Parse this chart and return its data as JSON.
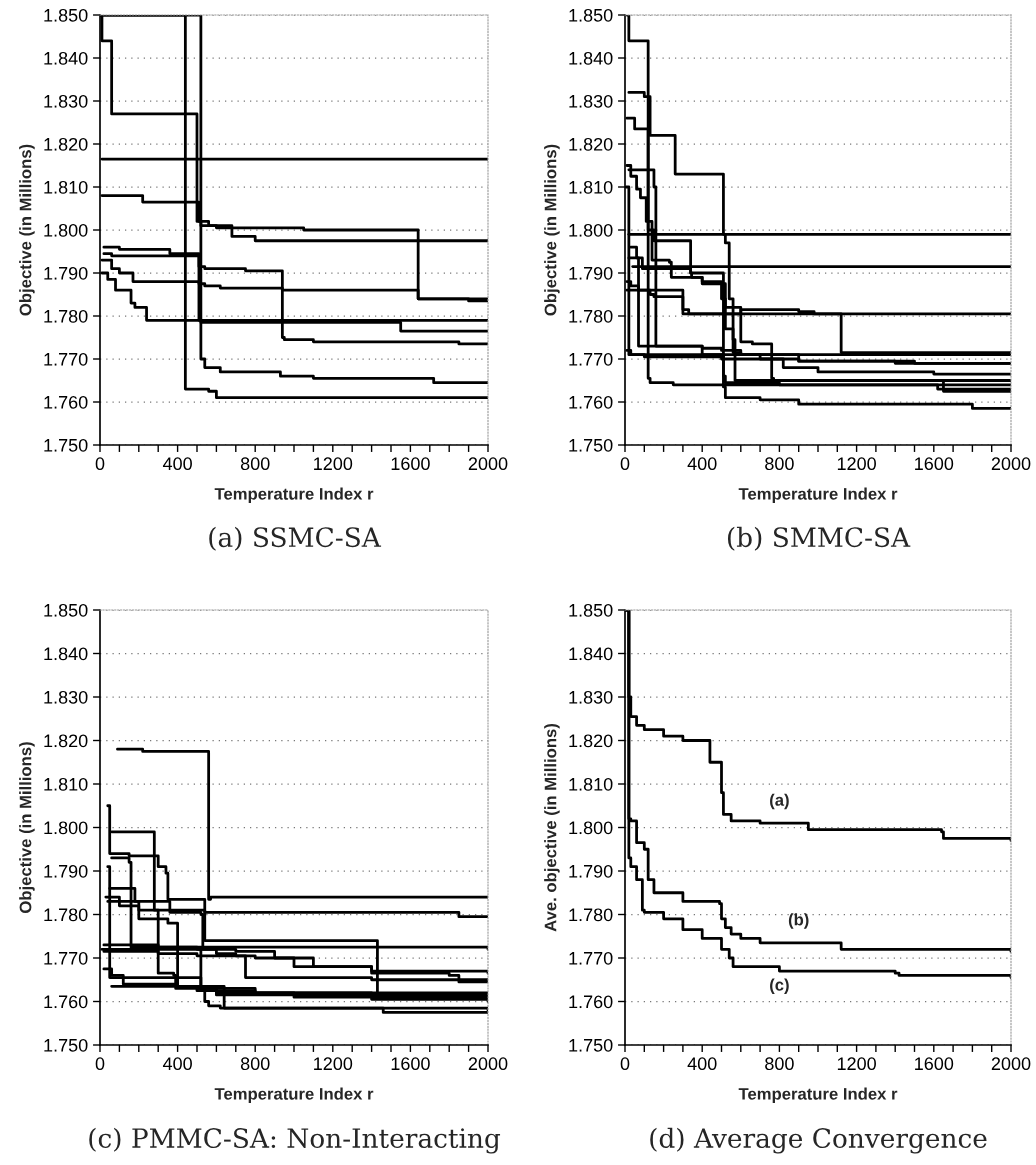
{
  "chart_data": [
    {
      "type": "step",
      "title": "(a) SSMC-SA",
      "xlabel": "Temperature Index r",
      "ylabel": "Objective (in Millions)",
      "xlim": [
        0,
        2000
      ],
      "ylim": [
        1.75,
        1.85
      ],
      "xticks": [
        0,
        {
          "value": 100,
          "label": null
        },
        {
          "value": 200,
          "label": null
        },
        {
          "value": 300,
          "label": null
        },
        400,
        {
          "value": 500,
          "label": null
        },
        {
          "value": 600,
          "label": null
        },
        {
          "value": 700,
          "label": null
        },
        800,
        {
          "value": 900,
          "label": null
        },
        {
          "value": 1000,
          "label": null
        },
        {
          "value": 1100,
          "label": null
        },
        1200,
        {
          "value": 1300,
          "label": null
        },
        {
          "value": 1400,
          "label": null
        },
        {
          "value": 1500,
          "label": null
        },
        1600,
        {
          "value": 1700,
          "label": null
        },
        {
          "value": 1800,
          "label": null
        },
        {
          "value": 1900,
          "label": null
        },
        2000
      ],
      "yticks": [
        {
          "value": 1.75,
          "label": "1.750"
        },
        {
          "value": 1.76,
          "label": "1.760"
        },
        {
          "value": 1.77,
          "label": "1.770"
        },
        {
          "value": 1.78,
          "label": "1.780"
        },
        {
          "value": 1.79,
          "label": "1.790"
        },
        {
          "value": 1.8,
          "label": "1.800"
        },
        {
          "value": 1.81,
          "label": "1.810"
        },
        {
          "value": 1.82,
          "label": "1.820"
        },
        {
          "value": 1.83,
          "label": "1.830"
        },
        {
          "value": 1.84,
          "label": "1.840"
        },
        {
          "value": 1.85,
          "label": "1.850"
        }
      ],
      "grid": "y",
      "legend": false,
      "series": [
        {
          "color": "#000000",
          "x": [
            0,
            10,
            60,
            500,
            520,
            600,
            700,
            1050,
            1640,
            1900,
            2000
          ],
          "values": [
            1.85,
            1.844,
            1.827,
            1.802,
            1.801,
            1.8005,
            1.8005,
            1.8,
            1.784,
            1.7835,
            1.7835
          ]
        },
        {
          "color": "#000000",
          "x": [
            10,
            2000
          ],
          "values": [
            1.8165,
            1.8165
          ]
        },
        {
          "color": "#000000",
          "x": [
            10,
            220,
            510,
            560,
            680,
            800,
            2000
          ],
          "values": [
            1.808,
            1.8065,
            1.802,
            1.801,
            1.7985,
            1.7975,
            1.7975
          ]
        },
        {
          "color": "#000000",
          "x": [
            20,
            100,
            360,
            510,
            540,
            750,
            940,
            950,
            1100,
            1850,
            2000
          ],
          "values": [
            1.796,
            1.7955,
            1.7945,
            1.7915,
            1.791,
            1.7905,
            1.775,
            1.7745,
            1.774,
            1.7735,
            1.7735
          ]
        },
        {
          "color": "#000000",
          "x": [
            20,
            60,
            510,
            540,
            620,
            940,
            1640,
            2000
          ],
          "values": [
            1.7945,
            1.794,
            1.7875,
            1.787,
            1.7865,
            1.786,
            1.784,
            1.784
          ]
        },
        {
          "color": "#000000",
          "x": [
            10,
            60,
            100,
            170,
            510,
            520,
            1550,
            2000
          ],
          "values": [
            1.793,
            1.791,
            1.79,
            1.788,
            1.779,
            1.7785,
            1.7765,
            1.7765
          ]
        },
        {
          "color": "#000000",
          "x": [
            10,
            40,
            80,
            160,
            180,
            240,
            2000
          ],
          "values": [
            1.79,
            1.7885,
            1.786,
            1.783,
            1.782,
            1.779,
            1.779
          ]
        },
        {
          "color": "#000000",
          "x": [
            0,
            510,
            520,
            540,
            620,
            930,
            1100,
            1720,
            2000
          ],
          "values": [
            1.85,
            1.85,
            1.77,
            1.768,
            1.767,
            1.766,
            1.7655,
            1.7645,
            1.7645
          ]
        },
        {
          "color": "#000000",
          "x": [
            0,
            440,
            560,
            600,
            2000
          ],
          "values": [
            1.85,
            1.763,
            1.7625,
            1.761,
            1.761
          ]
        }
      ]
    },
    {
      "type": "step",
      "title": "(b) SMMC-SA",
      "xlabel": "Temperature Index r",
      "ylabel": "Objective (in Millions)",
      "xlim": [
        0,
        2000
      ],
      "ylim": [
        1.75,
        1.85
      ],
      "xticks": [
        0,
        {
          "value": 100,
          "label": null
        },
        {
          "value": 200,
          "label": null
        },
        {
          "value": 300,
          "label": null
        },
        400,
        {
          "value": 500,
          "label": null
        },
        {
          "value": 600,
          "label": null
        },
        {
          "value": 700,
          "label": null
        },
        800,
        {
          "value": 900,
          "label": null
        },
        {
          "value": 1000,
          "label": null
        },
        {
          "value": 1100,
          "label": null
        },
        1200,
        {
          "value": 1300,
          "label": null
        },
        {
          "value": 1400,
          "label": null
        },
        {
          "value": 1500,
          "label": null
        },
        1600,
        {
          "value": 1700,
          "label": null
        },
        {
          "value": 1800,
          "label": null
        },
        {
          "value": 1900,
          "label": null
        },
        2000
      ],
      "yticks": [
        {
          "value": 1.75,
          "label": "1.750"
        },
        {
          "value": 1.76,
          "label": "1.760"
        },
        {
          "value": 1.77,
          "label": "1.770"
        },
        {
          "value": 1.78,
          "label": "1.780"
        },
        {
          "value": 1.79,
          "label": "1.790"
        },
        {
          "value": 1.8,
          "label": "1.800"
        },
        {
          "value": 1.81,
          "label": "1.810"
        },
        {
          "value": 1.82,
          "label": "1.820"
        },
        {
          "value": 1.83,
          "label": "1.830"
        },
        {
          "value": 1.84,
          "label": "1.840"
        },
        {
          "value": 1.85,
          "label": "1.850"
        }
      ],
      "grid": "y",
      "legend": false,
      "series": [
        {
          "color": "#000000",
          "x": [
            20,
            2000
          ],
          "values": [
            1.799,
            1.799
          ]
        },
        {
          "color": "#000000",
          "x": [
            40,
            2000
          ],
          "values": [
            1.7915,
            1.7915
          ]
        },
        {
          "color": "#000000",
          "x": [
            10,
            20,
            120,
            130,
            250,
            400,
            1620,
            2000
          ],
          "values": [
            1.85,
            1.844,
            1.7655,
            1.7645,
            1.764,
            1.764,
            1.763,
            1.763
          ]
        },
        {
          "color": "#000000",
          "x": [
            20,
            100,
            130,
            260,
            510,
            520,
            540,
            560,
            600,
            2000
          ],
          "values": [
            1.832,
            1.831,
            1.822,
            1.813,
            1.799,
            1.797,
            1.784,
            1.7715,
            1.771,
            1.771
          ]
        },
        {
          "color": "#000000",
          "x": [
            10,
            50,
            120,
            150,
            340,
            345,
            400,
            500,
            520,
            600,
            660,
            760,
            770,
            2000
          ],
          "values": [
            1.826,
            1.8235,
            1.8,
            1.7975,
            1.79,
            1.789,
            1.7875,
            1.784,
            1.782,
            1.774,
            1.7735,
            1.7655,
            1.765,
            1.765
          ]
        },
        {
          "color": "#000000",
          "x": [
            10,
            30,
            60,
            80,
            110,
            140,
            230,
            240,
            400,
            500,
            520,
            560,
            570,
            1650,
            2000
          ],
          "values": [
            1.815,
            1.8125,
            1.8095,
            1.8075,
            1.802,
            1.793,
            1.7925,
            1.789,
            1.788,
            1.7875,
            1.777,
            1.7745,
            1.765,
            1.7625,
            1.7625
          ]
        },
        {
          "color": "#000000",
          "x": [
            20,
            150,
            160,
            400,
            500,
            600,
            900,
            1500,
            2000
          ],
          "values": [
            1.814,
            1.81,
            1.773,
            1.7725,
            1.772,
            1.771,
            1.7695,
            1.769,
            1.769
          ]
        },
        {
          "color": "#000000",
          "x": [
            30,
            60,
            70,
            400,
            700,
            820,
            1000,
            1600,
            2000
          ],
          "values": [
            1.796,
            1.7935,
            1.773,
            1.771,
            1.77,
            1.768,
            1.767,
            1.7665,
            1.7665
          ]
        },
        {
          "color": "#000000",
          "x": [
            20,
            90,
            340,
            510,
            520,
            700,
            900,
            1800,
            2000
          ],
          "values": [
            1.7935,
            1.791,
            1.79,
            1.7635,
            1.761,
            1.7605,
            1.7595,
            1.7585,
            1.7585
          ]
        },
        {
          "color": "#000000",
          "x": [
            10,
            30,
            70,
            130,
            150,
            300,
            330,
            600,
            900,
            980,
            1120,
            2000
          ],
          "values": [
            1.788,
            1.787,
            1.786,
            1.785,
            1.7845,
            1.7815,
            1.7805,
            1.7815,
            1.781,
            1.7805,
            1.7715,
            1.7715
          ]
        },
        {
          "color": "#000000",
          "x": [
            10,
            300,
            2000
          ],
          "values": [
            1.786,
            1.7805,
            1.7805
          ]
        },
        {
          "color": "#000000",
          "x": [
            10,
            30,
            100,
            500,
            900,
            1400,
            2000
          ],
          "values": [
            1.772,
            1.771,
            1.7705,
            1.77,
            1.7695,
            1.769,
            1.769
          ]
        },
        {
          "color": "#000000",
          "x": [
            5,
            20,
            510,
            520,
            800,
            2000
          ],
          "values": [
            1.81,
            1.771,
            1.766,
            1.7645,
            1.764,
            1.764
          ]
        }
      ]
    },
    {
      "type": "step",
      "title": "(c) PMMC-SA: Non-Interacting",
      "xlabel": "Temperature Index r",
      "ylabel": "Objective (in Millions)",
      "xlim": [
        0,
        2000
      ],
      "ylim": [
        1.75,
        1.85
      ],
      "xticks": [
        0,
        {
          "value": 100,
          "label": null
        },
        {
          "value": 200,
          "label": null
        },
        {
          "value": 300,
          "label": null
        },
        400,
        {
          "value": 500,
          "label": null
        },
        {
          "value": 600,
          "label": null
        },
        {
          "value": 700,
          "label": null
        },
        800,
        {
          "value": 900,
          "label": null
        },
        {
          "value": 1000,
          "label": null
        },
        {
          "value": 1100,
          "label": null
        },
        1200,
        {
          "value": 1300,
          "label": null
        },
        {
          "value": 1400,
          "label": null
        },
        {
          "value": 1500,
          "label": null
        },
        1600,
        {
          "value": 1700,
          "label": null
        },
        {
          "value": 1800,
          "label": null
        },
        {
          "value": 1900,
          "label": null
        },
        2000
      ],
      "yticks": [
        {
          "value": 1.75,
          "label": "1.750"
        },
        {
          "value": 1.76,
          "label": "1.760"
        },
        {
          "value": 1.77,
          "label": "1.770"
        },
        {
          "value": 1.78,
          "label": "1.780"
        },
        {
          "value": 1.79,
          "label": "1.790"
        },
        {
          "value": 1.8,
          "label": "1.800"
        },
        {
          "value": 1.81,
          "label": "1.810"
        },
        {
          "value": 1.82,
          "label": "1.820"
        },
        {
          "value": 1.83,
          "label": "1.830"
        },
        {
          "value": 1.84,
          "label": "1.840"
        },
        {
          "value": 1.85,
          "label": "1.850"
        }
      ],
      "grid": "y",
      "legend": false,
      "series": [
        {
          "color": "#000000",
          "x": [
            90,
            220,
            560,
            570,
            2000
          ],
          "values": [
            1.818,
            1.8175,
            1.7835,
            1.784,
            1.784
          ]
        },
        {
          "color": "#000000",
          "x": [
            60,
            270,
            280,
            540,
            1850,
            2000
          ],
          "values": [
            1.799,
            1.799,
            1.781,
            1.7805,
            1.7795,
            1.7795
          ]
        },
        {
          "color": "#000000",
          "x": [
            40,
            50,
            150,
            300,
            340,
            350,
            530,
            540,
            1420,
            1430,
            2000
          ],
          "values": [
            1.805,
            1.794,
            1.7935,
            1.791,
            1.7895,
            1.7835,
            1.7835,
            1.774,
            1.774,
            1.761,
            1.7605
          ]
        },
        {
          "color": "#000000",
          "x": [
            60,
            150,
            160,
            2000
          ],
          "values": [
            1.793,
            1.792,
            1.7725,
            1.772
          ]
        },
        {
          "color": "#000000",
          "x": [
            50,
            180,
            360,
            520,
            530,
            700,
            900,
            1100,
            1400,
            2000
          ],
          "values": [
            1.786,
            1.783,
            1.7805,
            1.78,
            1.772,
            1.7715,
            1.77,
            1.768,
            1.767,
            1.7665
          ]
        },
        {
          "color": "#000000",
          "x": [
            30,
            100,
            200,
            350,
            400,
            600,
            800,
            2000
          ],
          "values": [
            1.784,
            1.782,
            1.779,
            1.778,
            1.7635,
            1.763,
            1.762,
            1.7615
          ]
        },
        {
          "color": "#000000",
          "x": [
            40,
            200,
            300,
            380,
            390,
            600,
            1000,
            2000
          ],
          "values": [
            1.783,
            1.781,
            1.7665,
            1.766,
            1.763,
            1.762,
            1.7615,
            1.761
          ]
        },
        {
          "color": "#000000",
          "x": [
            20,
            300,
            500,
            600,
            700,
            800,
            1000,
            1400,
            1800,
            1850,
            2000
          ],
          "values": [
            1.773,
            1.7725,
            1.772,
            1.771,
            1.7705,
            1.77,
            1.768,
            1.7665,
            1.766,
            1.7645,
            1.7645
          ]
        },
        {
          "color": "#000000",
          "x": [
            20,
            300,
            500,
            750,
            1400,
            2000
          ],
          "values": [
            1.7715,
            1.771,
            1.7705,
            1.7655,
            1.765,
            1.765
          ]
        },
        {
          "color": "#000000",
          "x": [
            20,
            60,
            120,
            400,
            500,
            800,
            1400,
            2000
          ],
          "values": [
            1.7675,
            1.766,
            1.764,
            1.7635,
            1.7625,
            1.762,
            1.7605,
            1.76
          ]
        },
        {
          "color": "#000000",
          "x": [
            60,
            500,
            600,
            1000,
            2000
          ],
          "values": [
            1.7635,
            1.763,
            1.7615,
            1.761,
            1.7605
          ]
        },
        {
          "color": "#000000",
          "x": [
            40,
            50,
            500,
            520,
            540,
            560,
            620,
            1450,
            1460,
            2000
          ],
          "values": [
            1.791,
            1.7655,
            1.7655,
            1.763,
            1.76,
            1.759,
            1.7585,
            1.7585,
            1.7575,
            1.7575
          ]
        },
        {
          "color": "#000000",
          "x": [
            10,
            520,
            640,
            2000
          ],
          "values": [
            1.772,
            1.7635,
            1.7585,
            1.758
          ]
        }
      ]
    },
    {
      "type": "step",
      "title": "(d) Average Convergence",
      "xlabel": "Temperature Index r",
      "ylabel": "Ave. objective (in Millions)",
      "xlim": [
        0,
        2000
      ],
      "ylim": [
        1.75,
        1.85
      ],
      "xticks": [
        0,
        {
          "value": 100,
          "label": null
        },
        {
          "value": 200,
          "label": null
        },
        {
          "value": 300,
          "label": null
        },
        400,
        {
          "value": 500,
          "label": null
        },
        {
          "value": 600,
          "label": null
        },
        {
          "value": 700,
          "label": null
        },
        800,
        {
          "value": 900,
          "label": null
        },
        {
          "value": 1000,
          "label": null
        },
        {
          "value": 1100,
          "label": null
        },
        1200,
        {
          "value": 1300,
          "label": null
        },
        {
          "value": 1400,
          "label": null
        },
        {
          "value": 1500,
          "label": null
        },
        1600,
        {
          "value": 1700,
          "label": null
        },
        {
          "value": 1800,
          "label": null
        },
        {
          "value": 1900,
          "label": null
        },
        2000
      ],
      "yticks": [
        {
          "value": 1.75,
          "label": "1.750"
        },
        {
          "value": 1.76,
          "label": "1.760"
        },
        {
          "value": 1.77,
          "label": "1.770"
        },
        {
          "value": 1.78,
          "label": "1.780"
        },
        {
          "value": 1.79,
          "label": "1.790"
        },
        {
          "value": 1.8,
          "label": "1.800"
        },
        {
          "value": 1.81,
          "label": "1.810"
        },
        {
          "value": 1.82,
          "label": "1.820"
        },
        {
          "value": 1.83,
          "label": "1.830"
        },
        {
          "value": 1.84,
          "label": "1.840"
        },
        {
          "value": 1.85,
          "label": "1.850"
        }
      ],
      "grid": "y",
      "legend": false,
      "series": [
        {
          "name": "(a)",
          "color": "#000000",
          "x": [
            0,
            20,
            30,
            60,
            100,
            200,
            300,
            430,
            440,
            490,
            500,
            510,
            550,
            700,
            940,
            950,
            1640,
            1650,
            2000
          ],
          "values": [
            1.85,
            1.83,
            1.8255,
            1.8235,
            1.8225,
            1.821,
            1.82,
            1.82,
            1.815,
            1.815,
            1.808,
            1.803,
            1.8015,
            1.801,
            1.801,
            1.7995,
            1.799,
            1.7975,
            1.797
          ]
        },
        {
          "name": "(b)",
          "color": "#000000",
          "x": [
            0,
            20,
            30,
            60,
            100,
            120,
            150,
            300,
            490,
            500,
            520,
            550,
            600,
            700,
            1120,
            2000
          ],
          "values": [
            1.85,
            1.802,
            1.8015,
            1.7965,
            1.795,
            1.788,
            1.785,
            1.783,
            1.7825,
            1.779,
            1.777,
            1.7755,
            1.7745,
            1.7735,
            1.772,
            1.7715
          ]
        },
        {
          "name": "(c)",
          "color": "#000000",
          "x": [
            0,
            20,
            30,
            60,
            90,
            100,
            200,
            300,
            400,
            500,
            540,
            560,
            800,
            1400,
            1420,
            2000
          ],
          "values": [
            1.85,
            1.793,
            1.791,
            1.788,
            1.781,
            1.7805,
            1.779,
            1.7765,
            1.7745,
            1.772,
            1.77,
            1.768,
            1.767,
            1.7665,
            1.766,
            1.7655
          ]
        }
      ]
    }
  ]
}
